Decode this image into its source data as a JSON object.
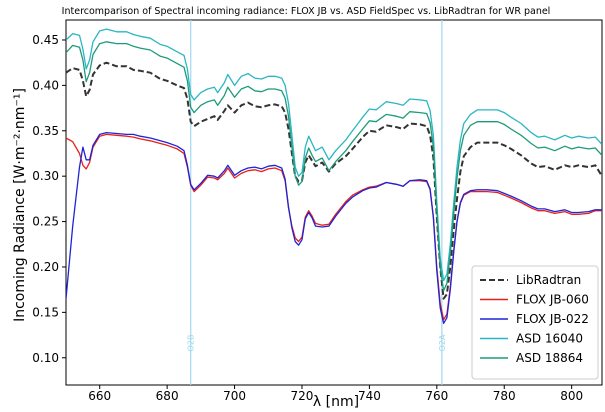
{
  "chart_data": {
    "type": "line",
    "title": "Intercomparison of Spectral incoming radiance: FLOX JB vs. ASD FieldSpec vs. LibRadtran for WR panel",
    "xlabel": "λ [nm]",
    "ylabel": "Incoming Radiance [W·m⁻²·nm⁻¹]",
    "xlim": [
      650,
      809
    ],
    "ylim": [
      0.07,
      0.472
    ],
    "xticks": [
      660,
      680,
      700,
      720,
      740,
      760,
      780,
      800
    ],
    "yticks": [
      0.1,
      0.15,
      0.2,
      0.25,
      0.3,
      0.35,
      0.4,
      0.45
    ],
    "xtick_labels": [
      "660",
      "680",
      "700",
      "720",
      "740",
      "760",
      "780",
      "800"
    ],
    "ytick_labels": [
      "0.10",
      "0.15",
      "0.20",
      "0.25",
      "0.30",
      "0.35",
      "0.40",
      "0.45"
    ],
    "grid": false,
    "legend_position": "lower-right",
    "vertical_lines": [
      {
        "x": 687,
        "label": "O2B",
        "color": "#9fd8ef"
      },
      {
        "x": 761.5,
        "label": "O2A",
        "color": "#9fd8ef"
      }
    ],
    "series": [
      {
        "name": "LibRadtran",
        "color": "#333333",
        "dash": "dashed",
        "x": [
          650,
          652,
          654,
          655,
          656,
          657,
          658,
          660,
          662,
          665,
          668,
          670,
          672,
          675,
          678,
          680,
          683,
          685,
          686,
          687,
          688,
          690,
          692,
          694,
          695,
          697,
          698,
          700,
          702,
          704,
          706,
          708,
          710,
          712,
          714,
          715,
          716,
          717,
          718,
          719,
          720,
          721,
          722,
          723,
          724,
          726,
          728,
          730,
          733,
          735,
          738,
          740,
          742,
          745,
          748,
          750,
          752,
          755,
          757,
          758,
          759,
          760,
          761,
          762,
          763,
          764,
          765,
          766,
          767,
          768,
          770,
          772,
          775,
          778,
          780,
          782,
          785,
          788,
          790,
          792,
          795,
          798,
          800,
          802,
          805,
          807,
          809
        ],
        "y": [
          0.414,
          0.419,
          0.417,
          0.405,
          0.388,
          0.395,
          0.412,
          0.422,
          0.425,
          0.421,
          0.421,
          0.417,
          0.416,
          0.414,
          0.407,
          0.405,
          0.4,
          0.397,
          0.385,
          0.36,
          0.355,
          0.36,
          0.363,
          0.366,
          0.362,
          0.372,
          0.378,
          0.37,
          0.378,
          0.381,
          0.377,
          0.376,
          0.378,
          0.379,
          0.377,
          0.37,
          0.352,
          0.325,
          0.3,
          0.294,
          0.295,
          0.315,
          0.323,
          0.317,
          0.311,
          0.315,
          0.305,
          0.314,
          0.322,
          0.33,
          0.343,
          0.35,
          0.349,
          0.356,
          0.354,
          0.352,
          0.358,
          0.357,
          0.355,
          0.345,
          0.32,
          0.255,
          0.2,
          0.165,
          0.17,
          0.2,
          0.24,
          0.275,
          0.305,
          0.322,
          0.332,
          0.337,
          0.337,
          0.337,
          0.334,
          0.33,
          0.323,
          0.314,
          0.31,
          0.311,
          0.307,
          0.312,
          0.31,
          0.312,
          0.31,
          0.312,
          0.3
        ]
      },
      {
        "name": "FLOX JB-060",
        "color": "#e8201a",
        "dash": "solid",
        "x": [
          650,
          652,
          654,
          655,
          656,
          657,
          658,
          660,
          662,
          665,
          668,
          670,
          672,
          675,
          678,
          680,
          683,
          685,
          686,
          687,
          688,
          690,
          692,
          694,
          695,
          697,
          698,
          700,
          702,
          704,
          706,
          708,
          710,
          712,
          714,
          715,
          716,
          717,
          718,
          719,
          720,
          721,
          722,
          723,
          724,
          726,
          728,
          730,
          733,
          735,
          738,
          740,
          742,
          745,
          748,
          750,
          752,
          755,
          757,
          758,
          759,
          760,
          761,
          762,
          763,
          764,
          765,
          766,
          767,
          768,
          770,
          772,
          775,
          778,
          780,
          782,
          785,
          788,
          790,
          792,
          795,
          798,
          800,
          802,
          805,
          807,
          809
        ],
        "y": [
          0.342,
          0.338,
          0.325,
          0.312,
          0.308,
          0.315,
          0.332,
          0.344,
          0.346,
          0.345,
          0.344,
          0.343,
          0.341,
          0.339,
          0.336,
          0.334,
          0.33,
          0.325,
          0.31,
          0.29,
          0.283,
          0.29,
          0.299,
          0.298,
          0.296,
          0.303,
          0.309,
          0.298,
          0.303,
          0.306,
          0.307,
          0.305,
          0.308,
          0.309,
          0.306,
          0.295,
          0.265,
          0.245,
          0.232,
          0.228,
          0.233,
          0.255,
          0.262,
          0.256,
          0.248,
          0.246,
          0.247,
          0.258,
          0.272,
          0.279,
          0.285,
          0.288,
          0.289,
          0.293,
          0.291,
          0.289,
          0.295,
          0.295,
          0.294,
          0.285,
          0.255,
          0.2,
          0.16,
          0.142,
          0.148,
          0.178,
          0.218,
          0.25,
          0.27,
          0.279,
          0.283,
          0.283,
          0.283,
          0.282,
          0.279,
          0.276,
          0.271,
          0.265,
          0.262,
          0.262,
          0.259,
          0.261,
          0.258,
          0.258,
          0.259,
          0.262,
          0.262
        ]
      },
      {
        "name": "FLOX JB-022",
        "color": "#1f24d6",
        "dash": "solid",
        "x": [
          650,
          652,
          654,
          655,
          656,
          657,
          658,
          660,
          662,
          665,
          668,
          670,
          672,
          675,
          678,
          680,
          683,
          685,
          686,
          687,
          688,
          690,
          692,
          694,
          695,
          697,
          698,
          700,
          702,
          704,
          706,
          708,
          710,
          712,
          714,
          715,
          716,
          717,
          718,
          719,
          720,
          721,
          722,
          723,
          724,
          726,
          728,
          730,
          733,
          735,
          738,
          740,
          742,
          745,
          748,
          750,
          752,
          755,
          757,
          758,
          759,
          760,
          761,
          762,
          763,
          764,
          765,
          766,
          767,
          768,
          770,
          772,
          775,
          778,
          780,
          782,
          785,
          788,
          790,
          792,
          795,
          798,
          800,
          802,
          805,
          807,
          809
        ],
        "y": [
          0.165,
          0.245,
          0.31,
          0.332,
          0.318,
          0.318,
          0.334,
          0.346,
          0.348,
          0.347,
          0.346,
          0.346,
          0.344,
          0.342,
          0.339,
          0.337,
          0.333,
          0.328,
          0.312,
          0.291,
          0.285,
          0.292,
          0.301,
          0.3,
          0.298,
          0.306,
          0.312,
          0.301,
          0.306,
          0.309,
          0.31,
          0.308,
          0.311,
          0.312,
          0.309,
          0.297,
          0.266,
          0.243,
          0.228,
          0.224,
          0.23,
          0.253,
          0.26,
          0.254,
          0.245,
          0.244,
          0.245,
          0.256,
          0.27,
          0.277,
          0.284,
          0.287,
          0.288,
          0.293,
          0.291,
          0.289,
          0.295,
          0.296,
          0.295,
          0.286,
          0.254,
          0.196,
          0.155,
          0.138,
          0.144,
          0.175,
          0.216,
          0.25,
          0.271,
          0.28,
          0.284,
          0.285,
          0.285,
          0.284,
          0.281,
          0.278,
          0.273,
          0.267,
          0.264,
          0.264,
          0.261,
          0.263,
          0.26,
          0.26,
          0.261,
          0.263,
          0.263
        ]
      },
      {
        "name": "ASD 16040",
        "color": "#2ab6c4",
        "dash": "solid",
        "x": [
          650,
          652,
          654,
          655,
          656,
          657,
          658,
          660,
          662,
          665,
          668,
          670,
          672,
          675,
          678,
          680,
          683,
          685,
          686,
          687,
          688,
          690,
          692,
          694,
          695,
          697,
          698,
          700,
          702,
          704,
          706,
          708,
          710,
          712,
          714,
          715,
          716,
          717,
          718,
          719,
          720,
          721,
          722,
          723,
          724,
          726,
          728,
          730,
          733,
          735,
          738,
          740,
          742,
          745,
          748,
          750,
          752,
          755,
          757,
          758,
          759,
          760,
          761,
          762,
          763,
          764,
          765,
          766,
          767,
          768,
          770,
          772,
          775,
          778,
          780,
          782,
          785,
          788,
          790,
          792,
          795,
          798,
          800,
          802,
          805,
          807,
          809
        ],
        "y": [
          0.45,
          0.457,
          0.455,
          0.44,
          0.418,
          0.428,
          0.448,
          0.46,
          0.462,
          0.459,
          0.459,
          0.456,
          0.454,
          0.452,
          0.445,
          0.443,
          0.437,
          0.433,
          0.418,
          0.39,
          0.384,
          0.392,
          0.396,
          0.398,
          0.392,
          0.403,
          0.412,
          0.4,
          0.41,
          0.413,
          0.408,
          0.407,
          0.41,
          0.41,
          0.408,
          0.4,
          0.38,
          0.345,
          0.31,
          0.3,
          0.304,
          0.332,
          0.344,
          0.336,
          0.328,
          0.332,
          0.318,
          0.328,
          0.34,
          0.35,
          0.365,
          0.374,
          0.373,
          0.382,
          0.38,
          0.378,
          0.385,
          0.384,
          0.383,
          0.372,
          0.345,
          0.272,
          0.21,
          0.185,
          0.192,
          0.225,
          0.27,
          0.31,
          0.34,
          0.358,
          0.368,
          0.373,
          0.373,
          0.373,
          0.37,
          0.365,
          0.358,
          0.348,
          0.343,
          0.344,
          0.34,
          0.345,
          0.342,
          0.344,
          0.342,
          0.343,
          0.335
        ]
      },
      {
        "name": "ASD 18864",
        "color": "#1e9b7a",
        "dash": "solid",
        "x": [
          650,
          652,
          654,
          655,
          656,
          657,
          658,
          660,
          662,
          665,
          668,
          670,
          672,
          675,
          678,
          680,
          683,
          685,
          686,
          687,
          688,
          690,
          692,
          694,
          695,
          697,
          698,
          700,
          702,
          704,
          706,
          708,
          710,
          712,
          714,
          715,
          716,
          717,
          718,
          719,
          720,
          721,
          722,
          723,
          724,
          726,
          728,
          730,
          733,
          735,
          738,
          740,
          742,
          745,
          748,
          750,
          752,
          755,
          757,
          758,
          759,
          760,
          761,
          762,
          763,
          764,
          765,
          766,
          767,
          768,
          770,
          772,
          775,
          778,
          780,
          782,
          785,
          788,
          790,
          792,
          795,
          798,
          800,
          802,
          805,
          807,
          809
        ],
        "y": [
          0.436,
          0.444,
          0.442,
          0.428,
          0.404,
          0.414,
          0.434,
          0.446,
          0.448,
          0.446,
          0.446,
          0.443,
          0.441,
          0.439,
          0.432,
          0.43,
          0.424,
          0.42,
          0.405,
          0.376,
          0.37,
          0.378,
          0.382,
          0.384,
          0.378,
          0.389,
          0.398,
          0.387,
          0.396,
          0.399,
          0.394,
          0.393,
          0.396,
          0.396,
          0.394,
          0.386,
          0.366,
          0.332,
          0.3,
          0.29,
          0.294,
          0.32,
          0.331,
          0.323,
          0.316,
          0.32,
          0.306,
          0.316,
          0.328,
          0.338,
          0.352,
          0.361,
          0.36,
          0.368,
          0.366,
          0.364,
          0.371,
          0.37,
          0.369,
          0.359,
          0.332,
          0.262,
          0.2,
          0.174,
          0.182,
          0.215,
          0.258,
          0.298,
          0.328,
          0.345,
          0.356,
          0.36,
          0.36,
          0.36,
          0.357,
          0.352,
          0.345,
          0.336,
          0.331,
          0.332,
          0.328,
          0.333,
          0.33,
          0.332,
          0.33,
          0.331,
          0.323
        ]
      }
    ]
  }
}
